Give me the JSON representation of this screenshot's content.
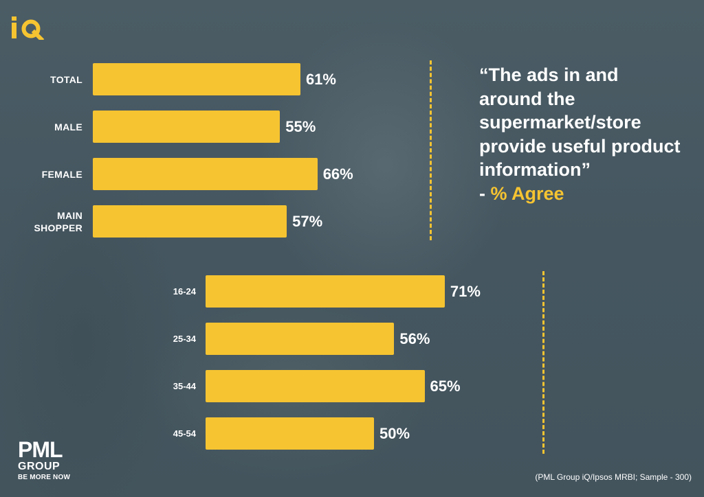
{
  "brand": {
    "logo_text": "iQ",
    "accent": "#f6c431"
  },
  "quote": {
    "text": "“The ads in and around the supermarket/store provide useful product information”",
    "suffix_dash": "- ",
    "suffix": "% Agree"
  },
  "chart_data": [
    {
      "type": "bar",
      "orientation": "horizontal",
      "title": "“The ads in and around the supermarket/store provide useful product information” - % Agree",
      "categories": [
        "TOTAL",
        "MALE",
        "FEMALE",
        "MAIN SHOPPER"
      ],
      "values": [
        61,
        55,
        66,
        57
      ],
      "labels": [
        "61%",
        "55%",
        "66%",
        "57%"
      ],
      "unit": "%",
      "xlim": [
        0,
        100
      ],
      "color": "#f6c431"
    },
    {
      "type": "bar",
      "orientation": "horizontal",
      "categories": [
        "16-24",
        "25-34",
        "35-44",
        "45-54"
      ],
      "values": [
        71,
        56,
        65,
        50
      ],
      "labels": [
        "71%",
        "56%",
        "65%",
        "50%"
      ],
      "unit": "%",
      "xlim": [
        0,
        100
      ],
      "color": "#f6c431"
    }
  ],
  "footer": {
    "company": "PML",
    "group": "GROUP",
    "tagline": "BE MORE NOW",
    "source": "(PML Group iQ/Ipsos MRBI; Sample - 300)"
  }
}
